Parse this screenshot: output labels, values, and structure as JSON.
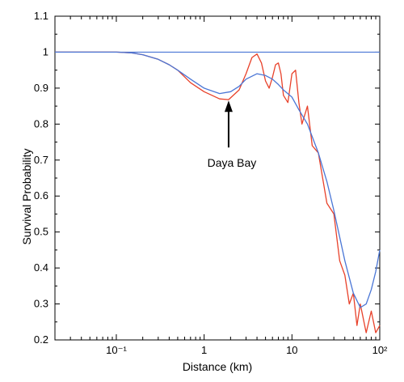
{
  "chart_data": {
    "type": "line",
    "title": "",
    "xlabel": "Distance (km)",
    "ylabel": "Survival Probability",
    "x_scale": "log",
    "xlim": [
      0.02,
      100
    ],
    "ylim": [
      0.2,
      1.1
    ],
    "x_tick_labels": [
      "10⁻¹",
      "1",
      "10",
      "10²"
    ],
    "y_tick_labels": [
      "0.2",
      "0.3",
      "0.4",
      "0.5",
      "0.6",
      "0.7",
      "0.8",
      "0.9",
      "1",
      "1.1"
    ],
    "grid": false,
    "reference_line": {
      "y": 1.0,
      "color": "#4a76d6"
    },
    "annotation": {
      "text": "Daya Bay",
      "arrow_to": {
        "x": 1.9,
        "y": 0.87
      }
    },
    "series": [
      {
        "color": "#e8412a",
        "x": [
          0.02,
          0.1,
          0.15,
          0.2,
          0.3,
          0.4,
          0.5,
          0.7,
          1.0,
          1.5,
          1.9,
          2.5,
          3.0,
          3.5,
          4.0,
          4.5,
          5.0,
          5.5,
          6.0,
          6.5,
          7.0,
          7.5,
          8.0,
          9.0,
          10,
          11,
          12,
          13,
          15,
          17,
          20,
          25,
          30,
          35,
          40,
          45,
          50,
          55,
          60,
          70,
          80,
          90,
          100
        ],
        "y": [
          1.0,
          1.0,
          0.998,
          0.993,
          0.98,
          0.965,
          0.95,
          0.915,
          0.89,
          0.87,
          0.868,
          0.895,
          0.94,
          0.985,
          0.995,
          0.97,
          0.92,
          0.9,
          0.93,
          0.965,
          0.97,
          0.94,
          0.88,
          0.86,
          0.94,
          0.95,
          0.86,
          0.8,
          0.85,
          0.74,
          0.72,
          0.58,
          0.55,
          0.42,
          0.38,
          0.3,
          0.33,
          0.24,
          0.3,
          0.22,
          0.28,
          0.22,
          0.24
        ]
      },
      {
        "color": "#4a76d6",
        "x": [
          0.02,
          0.1,
          0.15,
          0.2,
          0.3,
          0.4,
          0.5,
          0.7,
          1.0,
          1.5,
          2.0,
          2.5,
          3.0,
          4.0,
          5.0,
          6.0,
          7.0,
          8.0,
          10,
          12,
          15,
          20,
          25,
          30,
          40,
          50,
          60,
          70,
          80,
          90,
          100
        ],
        "y": [
          1.0,
          1.0,
          0.998,
          0.993,
          0.98,
          0.965,
          0.95,
          0.925,
          0.9,
          0.885,
          0.89,
          0.905,
          0.925,
          0.94,
          0.935,
          0.925,
          0.91,
          0.895,
          0.875,
          0.84,
          0.8,
          0.72,
          0.64,
          0.56,
          0.42,
          0.33,
          0.29,
          0.3,
          0.34,
          0.39,
          0.45
        ]
      }
    ]
  }
}
